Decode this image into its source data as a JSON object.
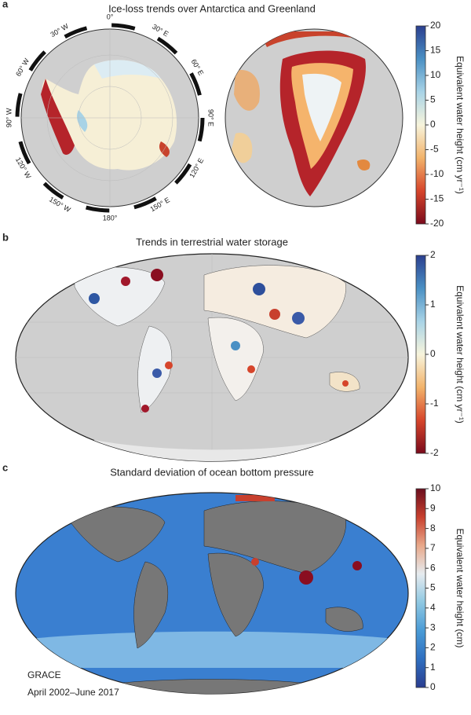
{
  "panels": [
    {
      "letter": "a",
      "title": "Ice-loss trends over Antarctica and Greenland",
      "longitude_labels": [
        "0°",
        "30° E",
        "60° E",
        "90° E",
        "120° E",
        "150° E",
        "180°",
        "150° W",
        "120° W",
        "90° W",
        "60° W",
        "30° W"
      ],
      "colorbar": {
        "label": "Equivalent water height (cm yr⁻¹)",
        "lim": [
          -20,
          20
        ],
        "ticks": [
          20,
          15,
          10,
          5,
          0,
          -5,
          -10,
          -15,
          -20
        ],
        "colors": [
          "#7a0b1c",
          "#d6452b",
          "#f2b36b",
          "#f7f4dc",
          "#a8d3e6",
          "#4a90c4",
          "#2b3f8f"
        ]
      }
    },
    {
      "letter": "b",
      "title": "Trends in terrestrial water storage",
      "colorbar": {
        "label": "Equivalent water height (cm yr⁻¹)",
        "lim": [
          -2,
          2
        ],
        "ticks": [
          2,
          1,
          0,
          -1,
          -2
        ],
        "colors": [
          "#7a0b1c",
          "#d6452b",
          "#f2b36b",
          "#f7f4dc",
          "#a8d3e6",
          "#4a90c4",
          "#2b3f8f"
        ]
      }
    },
    {
      "letter": "c",
      "title": "Standard deviation of ocean bottom pressure",
      "colorbar": {
        "label": "Equivalent water height (cm)",
        "lim": [
          0,
          10
        ],
        "ticks": [
          10,
          9,
          8,
          7,
          6,
          5,
          4,
          3,
          2,
          1,
          0
        ],
        "colors": [
          "#2a3d8f",
          "#2f6fc0",
          "#4a9bd6",
          "#8fc8e2",
          "#e6ebef",
          "#e8a88a",
          "#c8402e",
          "#6b0e1e"
        ]
      }
    }
  ],
  "source": "GRACE",
  "period": "April 2002–June 2017"
}
